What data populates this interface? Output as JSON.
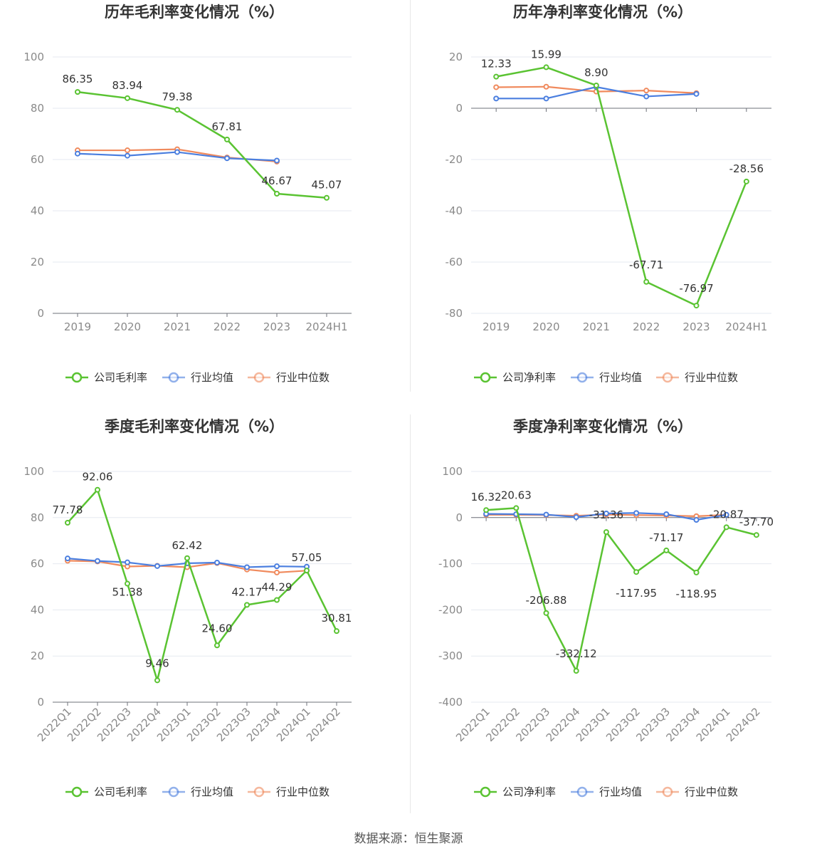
{
  "colors": {
    "company": "#5ac332",
    "avg": "#4a7edf",
    "median": "#f08a5d"
  },
  "source_text": "数据来源：恒生聚源",
  "chart_data": [
    {
      "id": "annual-gross",
      "type": "line",
      "title": "历年毛利率变化情况（%）",
      "categories": [
        "2019",
        "2020",
        "2021",
        "2022",
        "2023",
        "2024H1"
      ],
      "ylim": [
        0,
        100
      ],
      "yticks": [
        0,
        20,
        40,
        60,
        80,
        100
      ],
      "rotate_x": false,
      "series": [
        {
          "name": "公司毛利率",
          "role": "company",
          "values": [
            86.35,
            83.94,
            79.38,
            67.81,
            46.67,
            45.07
          ],
          "labels": true
        },
        {
          "name": "行业均值",
          "role": "avg",
          "values": [
            62.3,
            61.5,
            62.9,
            60.5,
            59.6,
            null
          ],
          "labels": false
        },
        {
          "name": "行业中位数",
          "role": "median",
          "values": [
            63.6,
            63.6,
            64.0,
            60.8,
            59.2,
            null
          ],
          "labels": false
        }
      ]
    },
    {
      "id": "annual-net",
      "type": "line",
      "title": "历年净利率变化情况（%）",
      "categories": [
        "2019",
        "2020",
        "2021",
        "2022",
        "2023",
        "2024H1"
      ],
      "ylim": [
        -80,
        20
      ],
      "yticks": [
        -80,
        -60,
        -40,
        -20,
        0,
        20
      ],
      "rotate_x": false,
      "series": [
        {
          "name": "公司净利率",
          "role": "company",
          "values": [
            12.33,
            15.99,
            8.9,
            -67.71,
            -76.97,
            -28.56
          ],
          "labels": true
        },
        {
          "name": "行业均值",
          "role": "avg",
          "values": [
            3.8,
            3.8,
            8.3,
            4.6,
            5.6,
            null
          ],
          "labels": false
        },
        {
          "name": "行业中位数",
          "role": "median",
          "values": [
            8.2,
            8.4,
            6.5,
            6.9,
            5.9,
            null
          ],
          "labels": false
        }
      ]
    },
    {
      "id": "quarterly-gross",
      "type": "line",
      "title": "季度毛利率变化情况（%）",
      "categories": [
        "2022Q1",
        "2022Q2",
        "2022Q3",
        "2022Q4",
        "2023Q1",
        "2023Q2",
        "2023Q3",
        "2023Q4",
        "2024Q1",
        "2024Q2"
      ],
      "ylim": [
        0,
        100
      ],
      "yticks": [
        0,
        20,
        40,
        60,
        80,
        100
      ],
      "rotate_x": true,
      "series": [
        {
          "name": "公司毛利率",
          "role": "company",
          "values": [
            77.78,
            92.06,
            51.38,
            9.46,
            62.42,
            24.6,
            42.17,
            44.29,
            57.05,
            30.81
          ],
          "labels": true
        },
        {
          "name": "行业均值",
          "role": "avg",
          "values": [
            62.3,
            61.2,
            60.6,
            59.0,
            60.2,
            60.5,
            58.5,
            58.9,
            58.7,
            null
          ],
          "labels": false
        },
        {
          "name": "行业中位数",
          "role": "median",
          "values": [
            61.3,
            61.0,
            58.8,
            59.1,
            58.5,
            60.3,
            57.5,
            56.2,
            57.0,
            null
          ],
          "labels": false
        }
      ]
    },
    {
      "id": "quarterly-net",
      "type": "line",
      "title": "季度净利率变化情况（%）",
      "categories": [
        "2022Q1",
        "2022Q2",
        "2022Q3",
        "2022Q4",
        "2023Q1",
        "2023Q2",
        "2023Q3",
        "2023Q4",
        "2024Q1",
        "2024Q2"
      ],
      "ylim": [
        -400,
        100
      ],
      "yticks": [
        -400,
        -300,
        -200,
        -100,
        0,
        100
      ],
      "rotate_x": true,
      "series": [
        {
          "name": "公司净利率",
          "role": "company",
          "values": [
            16.32,
            20.63,
            -206.88,
            -332.12,
            -31.36,
            -117.95,
            -71.17,
            -118.95,
            -20.87,
            -37.7
          ],
          "labels": true
        },
        {
          "name": "行业均值",
          "role": "avg",
          "values": [
            8.0,
            7.5,
            6.5,
            1.0,
            9.0,
            10.0,
            7.5,
            -5.0,
            6.0,
            null
          ],
          "labels": false
        },
        {
          "name": "行业中位数",
          "role": "median",
          "values": [
            6.0,
            6.0,
            5.5,
            4.0,
            6.5,
            5.5,
            4.5,
            3.0,
            6.0,
            null
          ],
          "labels": false
        }
      ]
    }
  ]
}
